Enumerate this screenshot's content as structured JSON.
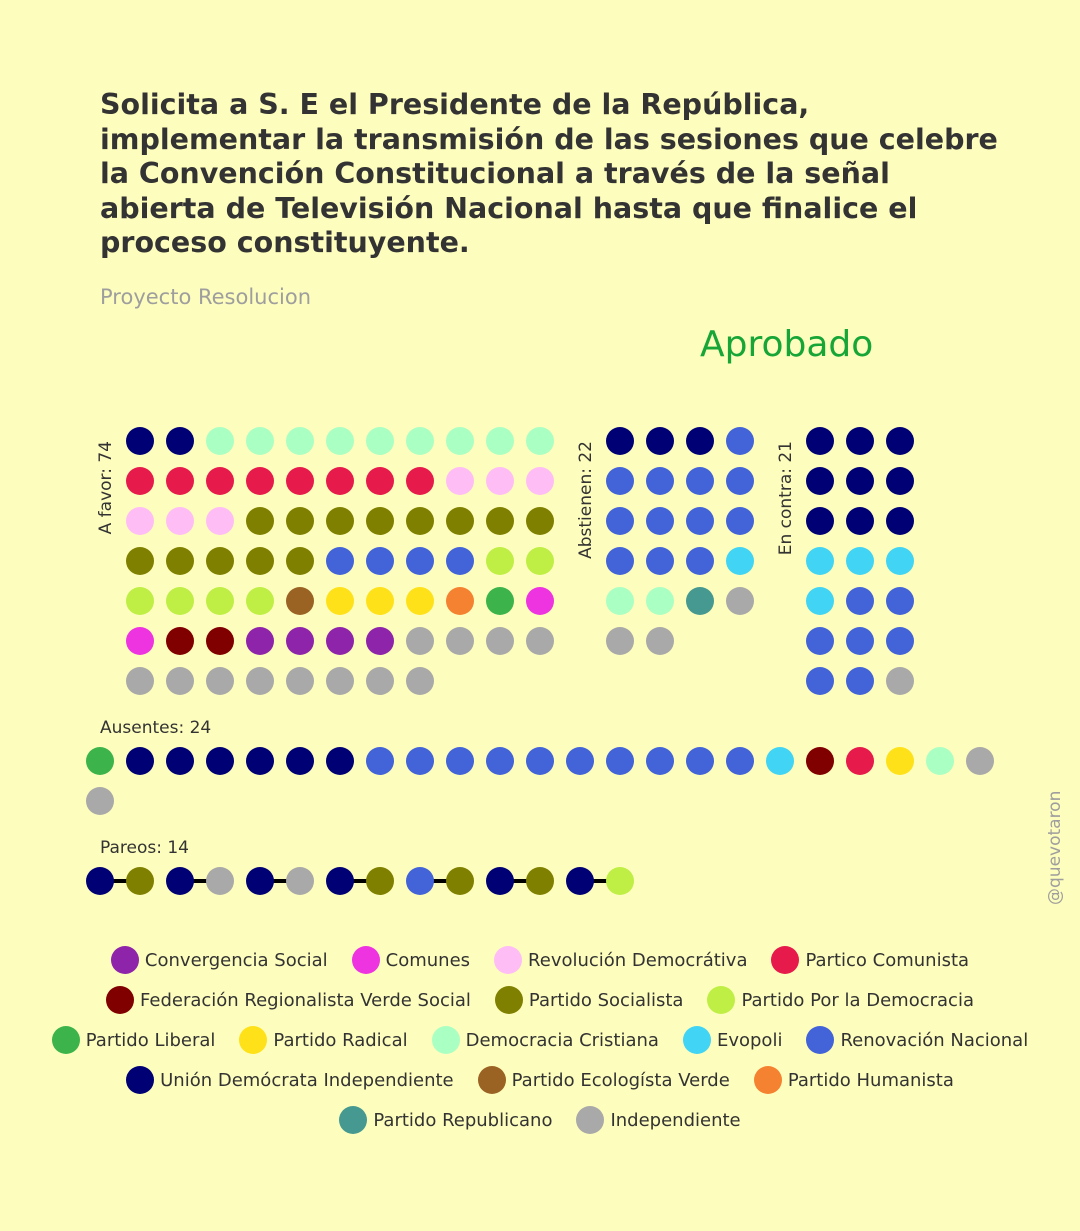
{
  "header": {
    "title": "Solicita a S. E el Presidente de la República, implementar la transmisión de las sesiones que celebre la Convención Constitucional a través de la señal abierta de Televisión Nacional hasta que finalice el proceso constituyente.",
    "subtitle": "Proyecto Resolucion",
    "result": "Aprobado"
  },
  "colors": {
    "background": "#fdfdbd",
    "result": "#17a537",
    "text": "#333333",
    "muted": "#9e9e9e"
  },
  "parties": {
    "CS": {
      "name": "Convergencia Social",
      "color": "#8e24aa"
    },
    "COM": {
      "name": "Comunes",
      "color": "#ee33e0"
    },
    "RD": {
      "name": "Revolución Democrátiva",
      "color": "#ffbdf5"
    },
    "PC": {
      "name": "Partico Comunista",
      "color": "#e61a4b"
    },
    "FRVS": {
      "name": "Federación Regionalista Verde Social",
      "color": "#800000"
    },
    "PS": {
      "name": "Partido Socialista",
      "color": "#808000"
    },
    "PPD": {
      "name": "Partido Por la Democracia",
      "color": "#bfef45"
    },
    "PL": {
      "name": "Partido Liberal",
      "color": "#3cb44b"
    },
    "PR": {
      "name": "Partido Radical",
      "color": "#ffe119"
    },
    "DC": {
      "name": "Democracia Cristiana",
      "color": "#aaffc3"
    },
    "EVO": {
      "name": "Evopoli",
      "color": "#42d4f4"
    },
    "RN": {
      "name": "Renovación Nacional",
      "color": "#4363d8"
    },
    "UDI": {
      "name": "Unión Demócrata Independiente",
      "color": "#000075"
    },
    "PEV": {
      "name": "Partido Ecologísta Verde",
      "color": "#9a6324"
    },
    "PH": {
      "name": "Partido Humanista",
      "color": "#f58231"
    },
    "REP": {
      "name": "Partido Republicano",
      "color": "#469990"
    },
    "IND": {
      "name": "Independiente",
      "color": "#a9a9a9"
    }
  },
  "legend_rows": [
    [
      "CS",
      "COM",
      "RD",
      "PC"
    ],
    [
      "FRVS",
      "PS",
      "PPD"
    ],
    [
      "PL",
      "PR",
      "DC",
      "EVO",
      "RN"
    ],
    [
      "UDI",
      "PEV",
      "PH"
    ],
    [
      "REP",
      "IND"
    ]
  ],
  "chart_data": {
    "type": "dot-matrix",
    "groups": [
      {
        "label": "A favor: 74",
        "count": 74,
        "rows": [
          [
            "UDI",
            "UDI",
            "DC",
            "DC",
            "DC",
            "DC",
            "DC",
            "DC",
            "DC",
            "DC",
            "DC"
          ],
          [
            "PC",
            "PC",
            "PC",
            "PC",
            "PC",
            "PC",
            "PC",
            "PC",
            "RD",
            "RD",
            "RD"
          ],
          [
            "RD",
            "RD",
            "RD",
            "PS",
            "PS",
            "PS",
            "PS",
            "PS",
            "PS",
            "PS",
            "PS"
          ],
          [
            "PS",
            "PS",
            "PS",
            "PS",
            "PS",
            "RN",
            "RN",
            "RN",
            "RN",
            "PPD",
            "PPD"
          ],
          [
            "PPD",
            "PPD",
            "PPD",
            "PPD",
            "PEV",
            "PR",
            "PR",
            "PR",
            "PH",
            "PL",
            "COM"
          ],
          [
            "COM",
            "FRVS",
            "FRVS",
            "CS",
            "CS",
            "CS",
            "CS",
            "IND",
            "IND",
            "IND",
            "IND"
          ],
          [
            "IND",
            "IND",
            "IND",
            "IND",
            "IND",
            "IND",
            "IND",
            "IND"
          ]
        ]
      },
      {
        "label": "Abstienen: 22",
        "count": 22,
        "rows": [
          [
            "UDI",
            "UDI",
            "UDI",
            "RN"
          ],
          [
            "RN",
            "RN",
            "RN",
            "RN"
          ],
          [
            "RN",
            "RN",
            "RN",
            "RN"
          ],
          [
            "RN",
            "RN",
            "RN",
            "EVO"
          ],
          [
            "DC",
            "DC",
            "REP",
            "IND"
          ],
          [
            "IND",
            "IND"
          ]
        ]
      },
      {
        "label": "En contra: 21",
        "count": 21,
        "rows": [
          [
            "UDI",
            "UDI",
            "UDI"
          ],
          [
            "UDI",
            "UDI",
            "UDI"
          ],
          [
            "UDI",
            "UDI",
            "UDI"
          ],
          [
            "EVO",
            "EVO",
            "EVO"
          ],
          [
            "EVO",
            "RN",
            "RN"
          ],
          [
            "RN",
            "RN",
            "RN"
          ],
          [
            "RN",
            "RN",
            "IND"
          ]
        ]
      },
      {
        "label": "Ausentes: 24",
        "count": 24,
        "rows": [
          [
            "PL",
            "UDI",
            "UDI",
            "UDI",
            "UDI",
            "UDI",
            "UDI",
            "RN",
            "RN",
            "RN",
            "RN",
            "RN",
            "RN",
            "RN",
            "RN",
            "RN",
            "RN",
            "EVO",
            "FRVS",
            "PC",
            "PR",
            "DC",
            "IND"
          ],
          [
            "IND"
          ]
        ]
      },
      {
        "label": "Pareos: 14",
        "count": 14,
        "pairs": [
          [
            "UDI",
            "PS"
          ],
          [
            "UDI",
            "IND"
          ],
          [
            "UDI",
            "IND"
          ],
          [
            "UDI",
            "PS"
          ],
          [
            "RN",
            "PS"
          ],
          [
            "UDI",
            "PS"
          ],
          [
            "UDI",
            "PPD"
          ]
        ]
      }
    ]
  },
  "credit": "@quevotaron"
}
